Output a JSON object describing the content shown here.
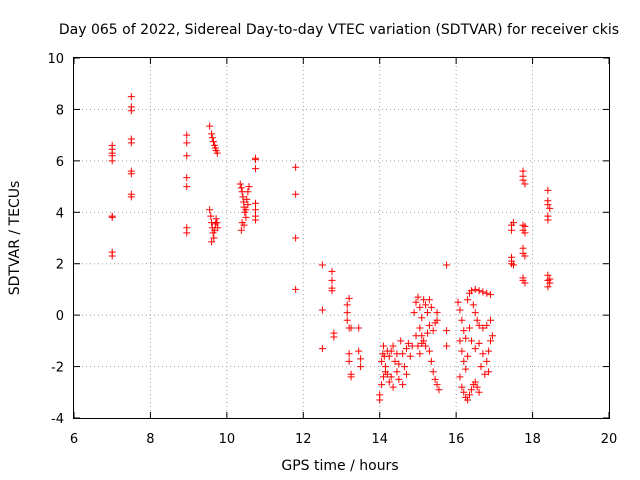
{
  "chart_data": {
    "type": "scatter",
    "title": "Day 065 of 2022, Sidereal Day-to-day VTEC variation (SDTVAR) for receiver ckis",
    "xlabel": "GPS time / hours",
    "ylabel": "SDTVAR / TECUs",
    "xlim": [
      6,
      20
    ],
    "ylim": [
      -4,
      10
    ],
    "xticks": [
      6,
      8,
      10,
      12,
      14,
      16,
      18,
      20
    ],
    "yticks": [
      -4,
      -2,
      0,
      2,
      4,
      6,
      8,
      10
    ],
    "grid": true,
    "marker": "+",
    "color": "#ff0000",
    "series": [
      {
        "name": "SDTVAR",
        "points": [
          [
            7.0,
            6.6
          ],
          [
            7.0,
            6.45
          ],
          [
            7.0,
            6.3
          ],
          [
            7.0,
            6.2
          ],
          [
            7.0,
            6.0
          ],
          [
            7.0,
            3.85
          ],
          [
            7.0,
            3.8
          ],
          [
            7.0,
            2.45
          ],
          [
            7.0,
            2.3
          ],
          [
            7.5,
            8.5
          ],
          [
            7.5,
            8.1
          ],
          [
            7.5,
            7.95
          ],
          [
            7.5,
            6.85
          ],
          [
            7.5,
            6.7
          ],
          [
            7.5,
            5.6
          ],
          [
            7.5,
            5.5
          ],
          [
            7.5,
            4.7
          ],
          [
            7.5,
            4.6
          ],
          [
            8.95,
            7.0
          ],
          [
            8.95,
            6.7
          ],
          [
            8.95,
            6.2
          ],
          [
            8.95,
            5.35
          ],
          [
            8.95,
            5.0
          ],
          [
            8.95,
            3.4
          ],
          [
            8.95,
            3.2
          ],
          [
            9.55,
            7.35
          ],
          [
            9.6,
            7.05
          ],
          [
            9.62,
            6.9
          ],
          [
            9.65,
            6.75
          ],
          [
            9.68,
            6.6
          ],
          [
            9.7,
            6.5
          ],
          [
            9.72,
            6.4
          ],
          [
            9.75,
            6.3
          ],
          [
            9.55,
            4.1
          ],
          [
            9.58,
            3.85
          ],
          [
            9.6,
            3.6
          ],
          [
            9.62,
            3.4
          ],
          [
            9.64,
            3.2
          ],
          [
            9.66,
            3.0
          ],
          [
            9.6,
            2.85
          ],
          [
            9.68,
            3.3
          ],
          [
            9.7,
            3.55
          ],
          [
            9.72,
            3.75
          ],
          [
            9.74,
            3.6
          ],
          [
            9.76,
            3.4
          ],
          [
            10.35,
            5.1
          ],
          [
            10.38,
            4.95
          ],
          [
            10.4,
            4.8
          ],
          [
            10.42,
            4.6
          ],
          [
            10.44,
            4.4
          ],
          [
            10.45,
            4.2
          ],
          [
            10.47,
            4.0
          ],
          [
            10.5,
            3.8
          ],
          [
            10.4,
            3.6
          ],
          [
            10.38,
            3.3
          ],
          [
            10.52,
            4.5
          ],
          [
            10.55,
            4.8
          ],
          [
            10.58,
            5.0
          ],
          [
            10.45,
            3.5
          ],
          [
            10.5,
            4.1
          ],
          [
            10.55,
            4.3
          ],
          [
            10.75,
            6.1
          ],
          [
            10.75,
            6.05
          ],
          [
            10.75,
            5.7
          ],
          [
            10.75,
            4.35
          ],
          [
            10.75,
            4.1
          ],
          [
            10.75,
            3.85
          ],
          [
            10.75,
            3.7
          ],
          [
            11.8,
            5.75
          ],
          [
            11.8,
            4.7
          ],
          [
            11.8,
            3.0
          ],
          [
            11.8,
            1.0
          ],
          [
            12.5,
            1.95
          ],
          [
            12.5,
            0.2
          ],
          [
            12.5,
            -1.3
          ],
          [
            12.75,
            1.7
          ],
          [
            12.75,
            1.35
          ],
          [
            12.75,
            1.05
          ],
          [
            12.75,
            0.95
          ],
          [
            12.8,
            -0.7
          ],
          [
            12.8,
            -0.85
          ],
          [
            13.15,
            0.4
          ],
          [
            13.15,
            0.1
          ],
          [
            13.15,
            -0.2
          ],
          [
            13.2,
            -0.5
          ],
          [
            13.2,
            -1.5
          ],
          [
            13.2,
            -1.8
          ],
          [
            13.25,
            -2.3
          ],
          [
            13.25,
            -2.4
          ],
          [
            13.2,
            0.65
          ],
          [
            13.25,
            -0.5
          ],
          [
            13.45,
            -0.5
          ],
          [
            13.45,
            -1.4
          ],
          [
            13.5,
            -1.7
          ],
          [
            13.5,
            -2.0
          ],
          [
            14.0,
            -3.1
          ],
          [
            14.0,
            -3.3
          ],
          [
            14.05,
            -2.7
          ],
          [
            14.1,
            -2.4
          ],
          [
            14.05,
            -1.8
          ],
          [
            14.08,
            -1.5
          ],
          [
            14.1,
            -1.2
          ],
          [
            14.12,
            -1.6
          ],
          [
            14.15,
            -2.0
          ],
          [
            14.2,
            -2.3
          ],
          [
            14.25,
            -2.6
          ],
          [
            14.3,
            -1.4
          ],
          [
            14.35,
            -1.2
          ],
          [
            14.4,
            -1.8
          ],
          [
            14.45,
            -2.2
          ],
          [
            14.5,
            -2.5
          ],
          [
            14.55,
            -1.0
          ],
          [
            14.6,
            -1.5
          ],
          [
            14.65,
            -2.0
          ],
          [
            14.7,
            -1.3
          ],
          [
            14.75,
            -1.1
          ],
          [
            14.8,
            -1.6
          ],
          [
            14.85,
            -1.2
          ],
          [
            14.25,
            -1.6
          ],
          [
            14.3,
            -2.4
          ],
          [
            14.35,
            -2.8
          ],
          [
            14.45,
            -1.5
          ],
          [
            14.5,
            -1.9
          ],
          [
            14.6,
            -2.7
          ],
          [
            14.7,
            -2.3
          ],
          [
            14.15,
            -2.2
          ],
          [
            14.2,
            -1.4
          ],
          [
            14.9,
            0.1
          ],
          [
            14.95,
            0.5
          ],
          [
            15.0,
            0.7
          ],
          [
            15.05,
            0.3
          ],
          [
            15.1,
            -0.1
          ],
          [
            15.15,
            0.6
          ],
          [
            15.2,
            0.4
          ],
          [
            15.25,
            0.1
          ],
          [
            15.3,
            0.6
          ],
          [
            15.35,
            0.3
          ],
          [
            15.05,
            -0.5
          ],
          [
            15.1,
            -0.8
          ],
          [
            15.15,
            -1.0
          ],
          [
            15.2,
            -1.2
          ],
          [
            15.25,
            -0.7
          ],
          [
            15.3,
            -0.4
          ],
          [
            15.0,
            -1.2
          ],
          [
            15.05,
            -1.5
          ],
          [
            15.1,
            -1.1
          ],
          [
            15.3,
            -1.4
          ],
          [
            15.35,
            -1.8
          ],
          [
            15.4,
            -2.2
          ],
          [
            15.45,
            -2.5
          ],
          [
            15.5,
            -2.7
          ],
          [
            15.55,
            -2.9
          ],
          [
            14.95,
            -0.8
          ],
          [
            15.4,
            -0.6
          ],
          [
            15.45,
            -0.3
          ],
          [
            15.5,
            -0.2
          ],
          [
            15.5,
            0.1
          ],
          [
            15.75,
            1.95
          ],
          [
            15.75,
            -0.6
          ],
          [
            15.75,
            -1.2
          ],
          [
            16.05,
            0.5
          ],
          [
            16.1,
            0.2
          ],
          [
            16.15,
            -0.2
          ],
          [
            16.2,
            -0.6
          ],
          [
            16.1,
            -1.0
          ],
          [
            16.15,
            -1.4
          ],
          [
            16.2,
            -1.8
          ],
          [
            16.25,
            -2.1
          ],
          [
            16.1,
            -2.4
          ],
          [
            16.15,
            -2.8
          ],
          [
            16.2,
            -3.0
          ],
          [
            16.25,
            -3.2
          ],
          [
            16.3,
            -3.3
          ],
          [
            16.35,
            -3.1
          ],
          [
            16.4,
            -2.9
          ],
          [
            16.45,
            -2.7
          ],
          [
            16.5,
            -2.6
          ],
          [
            16.55,
            -2.8
          ],
          [
            16.6,
            -3.0
          ],
          [
            16.3,
            0.6
          ],
          [
            16.35,
            0.85
          ],
          [
            16.4,
            0.95
          ],
          [
            16.5,
            1.0
          ],
          [
            16.6,
            0.95
          ],
          [
            16.7,
            0.9
          ],
          [
            16.8,
            0.85
          ],
          [
            16.9,
            0.8
          ],
          [
            16.45,
            0.4
          ],
          [
            16.5,
            0.1
          ],
          [
            16.55,
            -0.2
          ],
          [
            16.6,
            -0.4
          ],
          [
            16.7,
            -0.5
          ],
          [
            16.8,
            -0.4
          ],
          [
            16.9,
            -0.2
          ],
          [
            16.4,
            -1.0
          ],
          [
            16.5,
            -1.3
          ],
          [
            16.6,
            -1.1
          ],
          [
            16.7,
            -1.5
          ],
          [
            16.8,
            -1.8
          ],
          [
            16.85,
            -1.4
          ],
          [
            16.9,
            -1.0
          ],
          [
            16.95,
            -0.8
          ],
          [
            16.65,
            -2.0
          ],
          [
            16.75,
            -2.3
          ],
          [
            16.85,
            -2.2
          ],
          [
            16.3,
            -1.6
          ],
          [
            16.25,
            -0.9
          ],
          [
            16.35,
            -0.5
          ],
          [
            17.45,
            3.5
          ],
          [
            17.45,
            3.3
          ],
          [
            17.45,
            2.25
          ],
          [
            17.45,
            2.1
          ],
          [
            17.45,
            2.0
          ],
          [
            17.5,
            3.6
          ],
          [
            17.5,
            1.95
          ],
          [
            17.75,
            5.6
          ],
          [
            17.75,
            5.4
          ],
          [
            17.75,
            5.25
          ],
          [
            17.8,
            5.1
          ],
          [
            17.75,
            3.5
          ],
          [
            17.75,
            3.3
          ],
          [
            17.8,
            3.2
          ],
          [
            17.75,
            2.6
          ],
          [
            17.75,
            2.4
          ],
          [
            17.8,
            2.3
          ],
          [
            17.75,
            1.45
          ],
          [
            17.75,
            1.35
          ],
          [
            17.8,
            1.25
          ],
          [
            17.8,
            3.45
          ],
          [
            18.4,
            4.85
          ],
          [
            18.4,
            4.45
          ],
          [
            18.4,
            4.3
          ],
          [
            18.45,
            4.15
          ],
          [
            18.4,
            3.85
          ],
          [
            18.4,
            3.7
          ],
          [
            18.4,
            1.55
          ],
          [
            18.45,
            1.4
          ],
          [
            18.4,
            1.35
          ],
          [
            18.45,
            1.25
          ],
          [
            18.4,
            1.1
          ]
        ]
      }
    ]
  }
}
